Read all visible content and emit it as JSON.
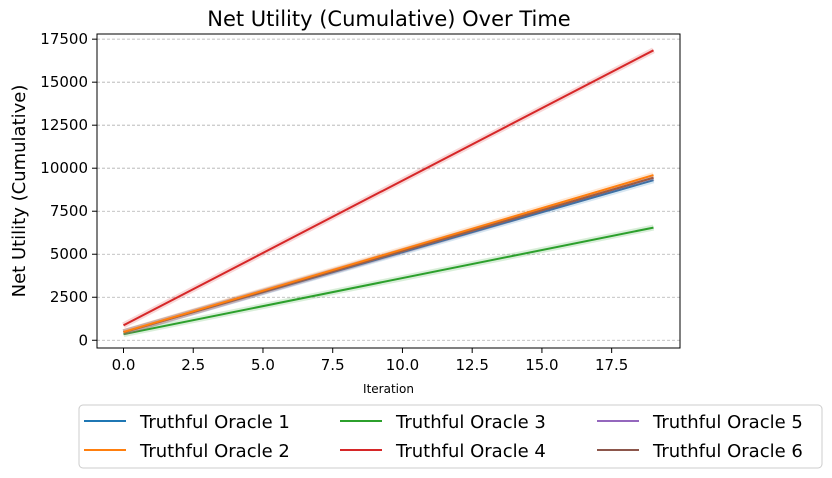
{
  "chart_data": {
    "type": "line",
    "title": "Net Utility (Cumulative) Over Time",
    "xlabel": "Iteration",
    "ylabel": "Net Utility (Cumulative)",
    "xlim": [
      -0.95,
      19.95
    ],
    "ylim": [
      -450,
      17800
    ],
    "xticks": [
      0.0,
      2.5,
      5.0,
      7.5,
      10.0,
      12.5,
      15.0,
      17.5
    ],
    "xtick_labels": [
      "0.0",
      "2.5",
      "5.0",
      "7.5",
      "10.0",
      "12.5",
      "15.0",
      "17.5"
    ],
    "yticks": [
      0,
      2500,
      5000,
      7500,
      10000,
      12500,
      15000,
      17500
    ],
    "ytick_labels": [
      "0",
      "2500",
      "5000",
      "7500",
      "10000",
      "12500",
      "15000",
      "17500"
    ],
    "grid": "horizontal dashed",
    "legend_position": "below plot, 3 columns",
    "x": [
      0,
      19
    ],
    "series": [
      {
        "name": "Truthful Oracle 1",
        "color": "#1f77b4",
        "values": [
          470,
          9300
        ]
      },
      {
        "name": "Truthful Oracle 2",
        "color": "#ff7f0e",
        "values": [
          480,
          9600
        ]
      },
      {
        "name": "Truthful Oracle 3",
        "color": "#2ca02c",
        "values": [
          350,
          6550
        ]
      },
      {
        "name": "Truthful Oracle 4",
        "color": "#d62728",
        "values": [
          870,
          16850
        ]
      },
      {
        "name": "Truthful Oracle 5",
        "color": "#9467bd",
        "values": [
          460,
          9450
        ]
      },
      {
        "name": "Truthful Oracle 6",
        "color": "#8c564b",
        "values": [
          455,
          9450
        ]
      }
    ]
  }
}
